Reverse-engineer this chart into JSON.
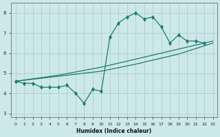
{
  "xlabel": "Humidex (Indice chaleur)",
  "bg_color": "#cde8e8",
  "line_color": "#1a7a6e",
  "xlim": [
    -0.5,
    23.5
  ],
  "ylim": [
    2.8,
    8.5
  ],
  "xticks": [
    0,
    1,
    2,
    3,
    4,
    5,
    6,
    7,
    8,
    9,
    10,
    11,
    12,
    13,
    14,
    15,
    16,
    17,
    18,
    19,
    20,
    21,
    22,
    23
  ],
  "yticks": [
    3,
    4,
    5,
    6,
    7,
    8
  ],
  "grid_color": "#aecece",
  "line1_x": [
    0,
    1,
    2,
    3,
    4,
    5,
    6,
    7,
    8,
    9,
    10,
    11,
    12,
    13,
    14,
    15,
    16,
    17,
    18,
    19,
    20,
    21,
    22
  ],
  "line1_y": [
    4.6,
    4.5,
    4.5,
    4.3,
    4.3,
    4.3,
    4.4,
    4.0,
    3.5,
    4.2,
    4.1,
    6.8,
    7.5,
    7.8,
    8.0,
    7.7,
    7.8,
    7.3,
    6.5,
    6.9,
    6.6,
    6.6,
    6.5
  ],
  "line2_x": [
    0,
    5,
    10,
    14,
    19,
    23
  ],
  "line2_y": [
    4.6,
    4.85,
    5.1,
    5.45,
    5.95,
    6.5
  ],
  "line3_x": [
    0,
    5,
    10,
    14,
    19,
    23
  ],
  "line3_y": [
    4.6,
    4.9,
    5.3,
    5.7,
    6.2,
    6.6
  ]
}
